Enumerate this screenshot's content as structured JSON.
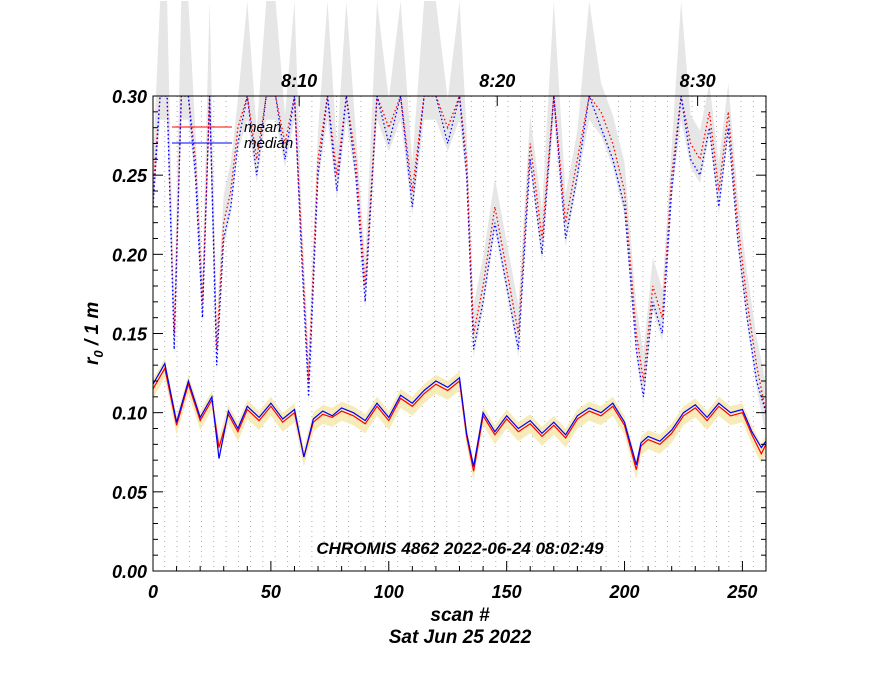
{
  "chart_data": {
    "type": "line",
    "xlabel": "scan #",
    "date_label": "Sat Jun 25 2022",
    "annotation": "CHROMIS 4862 2022-06-24 08:02:49",
    "xlim": [
      0,
      260
    ],
    "ylim": [
      0.0,
      0.3
    ],
    "x_ticks": [
      "0",
      "50",
      "100",
      "150",
      "200",
      "250"
    ],
    "y_ticks": [
      "0.00",
      "0.05",
      "0.10",
      "0.15",
      "0.20",
      "0.25",
      "0.30"
    ],
    "time_ticks": [
      {
        "label": "8:10",
        "scan": 62
      },
      {
        "label": "8:20",
        "scan": 146
      },
      {
        "label": "8:30",
        "scan": 231
      }
    ],
    "legend": [
      {
        "name": "mean",
        "color": "#ff0000"
      },
      {
        "name": "median",
        "color": "#0000ff"
      }
    ],
    "colors": {
      "mean": "#ff0000",
      "median": "#0000ff",
      "spread": "#e6e6e6",
      "band": "#f5e6a8",
      "scan_lines": "#999999"
    },
    "series": [
      {
        "name": "mean",
        "line_style": "solid",
        "x": [
          0,
          5,
          10,
          15,
          20,
          25,
          28,
          32,
          36,
          40,
          45,
          50,
          55,
          60,
          64,
          68,
          72,
          76,
          80,
          85,
          90,
          95,
          100,
          105,
          110,
          115,
          120,
          125,
          130,
          133,
          136,
          140,
          145,
          150,
          155,
          160,
          165,
          170,
          175,
          180,
          185,
          190,
          195,
          200,
          205,
          207,
          210,
          215,
          220,
          225,
          230,
          235,
          240,
          245,
          250,
          254,
          258,
          260
        ],
        "y": [
          0.115,
          0.128,
          0.092,
          0.118,
          0.095,
          0.108,
          0.078,
          0.099,
          0.088,
          0.102,
          0.095,
          0.104,
          0.094,
          0.1,
          0.072,
          0.094,
          0.099,
          0.097,
          0.101,
          0.098,
          0.093,
          0.104,
          0.095,
          0.109,
          0.104,
          0.112,
          0.118,
          0.114,
          0.12,
          0.085,
          0.063,
          0.098,
          0.086,
          0.096,
          0.088,
          0.093,
          0.085,
          0.092,
          0.084,
          0.096,
          0.101,
          0.098,
          0.104,
          0.092,
          0.064,
          0.079,
          0.083,
          0.08,
          0.087,
          0.098,
          0.103,
          0.095,
          0.104,
          0.098,
          0.1,
          0.086,
          0.074,
          0.08
        ]
      },
      {
        "name": "median",
        "line_style": "solid",
        "x": [
          0,
          5,
          10,
          15,
          20,
          25,
          28,
          32,
          36,
          40,
          45,
          50,
          55,
          60,
          64,
          68,
          72,
          76,
          80,
          85,
          90,
          95,
          100,
          105,
          110,
          115,
          120,
          125,
          130,
          133,
          136,
          140,
          145,
          150,
          155,
          160,
          165,
          170,
          175,
          180,
          185,
          190,
          195,
          200,
          205,
          207,
          210,
          215,
          220,
          225,
          230,
          235,
          240,
          245,
          250,
          254,
          258,
          260
        ],
        "y": [
          0.118,
          0.131,
          0.094,
          0.12,
          0.097,
          0.11,
          0.071,
          0.101,
          0.09,
          0.104,
          0.097,
          0.106,
          0.096,
          0.102,
          0.072,
          0.096,
          0.101,
          0.098,
          0.103,
          0.1,
          0.095,
          0.106,
          0.097,
          0.111,
          0.106,
          0.114,
          0.12,
          0.116,
          0.122,
          0.087,
          0.066,
          0.1,
          0.088,
          0.098,
          0.09,
          0.095,
          0.087,
          0.094,
          0.086,
          0.098,
          0.103,
          0.1,
          0.106,
          0.094,
          0.067,
          0.081,
          0.085,
          0.082,
          0.089,
          0.1,
          0.105,
          0.097,
          0.106,
          0.1,
          0.102,
          0.088,
          0.078,
          0.082
        ]
      },
      {
        "name": "mean (upper)",
        "line_style": "dotted",
        "x": [
          0,
          3,
          6,
          9,
          12,
          15,
          18,
          21,
          24,
          27,
          30,
          33,
          36,
          40,
          44,
          48,
          52,
          56,
          60,
          63,
          66,
          70,
          74,
          78,
          82,
          86,
          90,
          95,
          100,
          105,
          110,
          115,
          120,
          125,
          130,
          133,
          136,
          140,
          145,
          150,
          155,
          160,
          165,
          170,
          175,
          180,
          185,
          190,
          195,
          200,
          205,
          208,
          212,
          216,
          220,
          224,
          228,
          232,
          236,
          240,
          244,
          248,
          252,
          256,
          260
        ],
        "y": [
          0.24,
          0.3,
          0.3,
          0.15,
          0.3,
          0.3,
          0.26,
          0.17,
          0.3,
          0.14,
          0.22,
          0.24,
          0.28,
          0.3,
          0.26,
          0.3,
          0.3,
          0.27,
          0.3,
          0.21,
          0.12,
          0.26,
          0.3,
          0.25,
          0.3,
          0.26,
          0.18,
          0.3,
          0.28,
          0.3,
          0.24,
          0.3,
          0.3,
          0.28,
          0.3,
          0.26,
          0.15,
          0.18,
          0.23,
          0.19,
          0.15,
          0.27,
          0.21,
          0.3,
          0.22,
          0.26,
          0.3,
          0.29,
          0.27,
          0.24,
          0.15,
          0.12,
          0.18,
          0.16,
          0.25,
          0.3,
          0.27,
          0.26,
          0.29,
          0.24,
          0.29,
          0.22,
          0.17,
          0.13,
          0.1
        ]
      },
      {
        "name": "median (upper)",
        "line_style": "dotted",
        "x": [
          0,
          3,
          6,
          9,
          12,
          15,
          18,
          21,
          24,
          27,
          30,
          33,
          36,
          40,
          44,
          48,
          52,
          56,
          60,
          63,
          66,
          70,
          74,
          78,
          82,
          86,
          90,
          95,
          100,
          105,
          110,
          115,
          120,
          125,
          130,
          133,
          136,
          140,
          145,
          150,
          155,
          160,
          165,
          170,
          175,
          180,
          185,
          190,
          195,
          200,
          205,
          208,
          212,
          216,
          220,
          224,
          228,
          232,
          236,
          240,
          244,
          248,
          252,
          256,
          260
        ],
        "y": [
          0.23,
          0.3,
          0.3,
          0.14,
          0.3,
          0.3,
          0.25,
          0.16,
          0.3,
          0.13,
          0.21,
          0.23,
          0.27,
          0.3,
          0.25,
          0.3,
          0.3,
          0.26,
          0.3,
          0.2,
          0.11,
          0.25,
          0.3,
          0.24,
          0.3,
          0.25,
          0.17,
          0.3,
          0.27,
          0.3,
          0.23,
          0.3,
          0.3,
          0.27,
          0.3,
          0.25,
          0.14,
          0.17,
          0.22,
          0.18,
          0.14,
          0.26,
          0.2,
          0.3,
          0.21,
          0.25,
          0.3,
          0.28,
          0.26,
          0.23,
          0.14,
          0.11,
          0.17,
          0.15,
          0.24,
          0.3,
          0.26,
          0.25,
          0.28,
          0.23,
          0.28,
          0.21,
          0.16,
          0.12,
          0.1
        ]
      }
    ]
  }
}
